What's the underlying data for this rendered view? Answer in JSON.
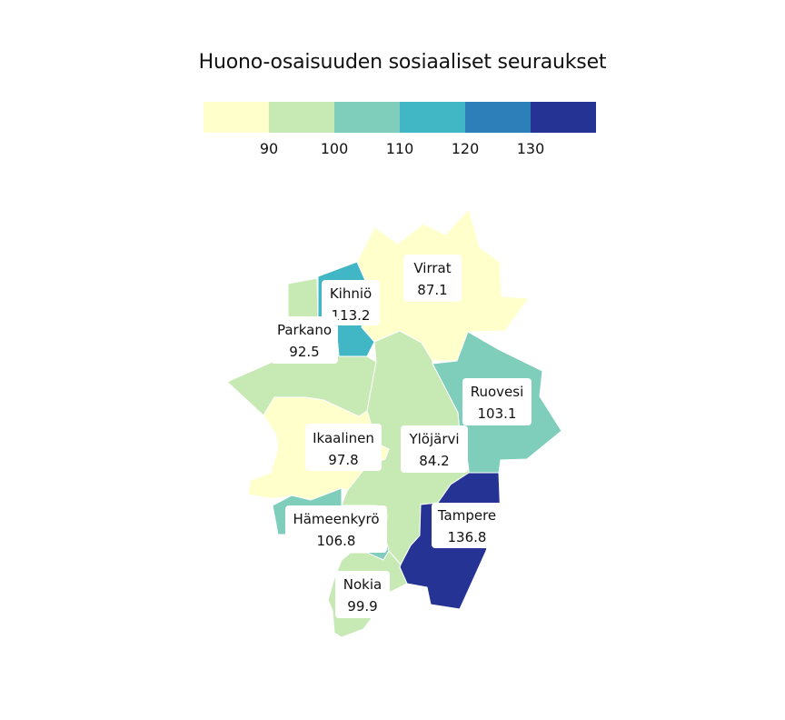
{
  "title": "Huono-osaisuuden sosiaaliset seuraukset",
  "legend": {
    "colors": [
      "#ffffcc",
      "#c7e9b4",
      "#7fcdbb",
      "#41b6c4",
      "#2c7fb8",
      "#253494"
    ],
    "ticks": [
      "90",
      "100",
      "110",
      "120",
      "130"
    ]
  },
  "regions": [
    {
      "name": "Virrat",
      "value": "87.1",
      "color": "#ffffcc"
    },
    {
      "name": "Kihniö",
      "value": "113.2",
      "color": "#41b6c4"
    },
    {
      "name": "Parkano",
      "value": "92.5",
      "color": "#c7e9b4"
    },
    {
      "name": "Ruovesi",
      "value": "103.1",
      "color": "#7fcdbb"
    },
    {
      "name": "Ikaalinen",
      "value": "97.8",
      "color": "#c7e9b4"
    },
    {
      "name": "Ylöjärvi",
      "value": "84.2",
      "color": "#ffffcc"
    },
    {
      "name": "Hämeenkyrö",
      "value": "106.8",
      "color": "#7fcdbb"
    },
    {
      "name": "Tampere",
      "value": "136.8",
      "color": "#253494"
    },
    {
      "name": "Nokia",
      "value": "99.9",
      "color": "#c7e9b4"
    }
  ]
}
